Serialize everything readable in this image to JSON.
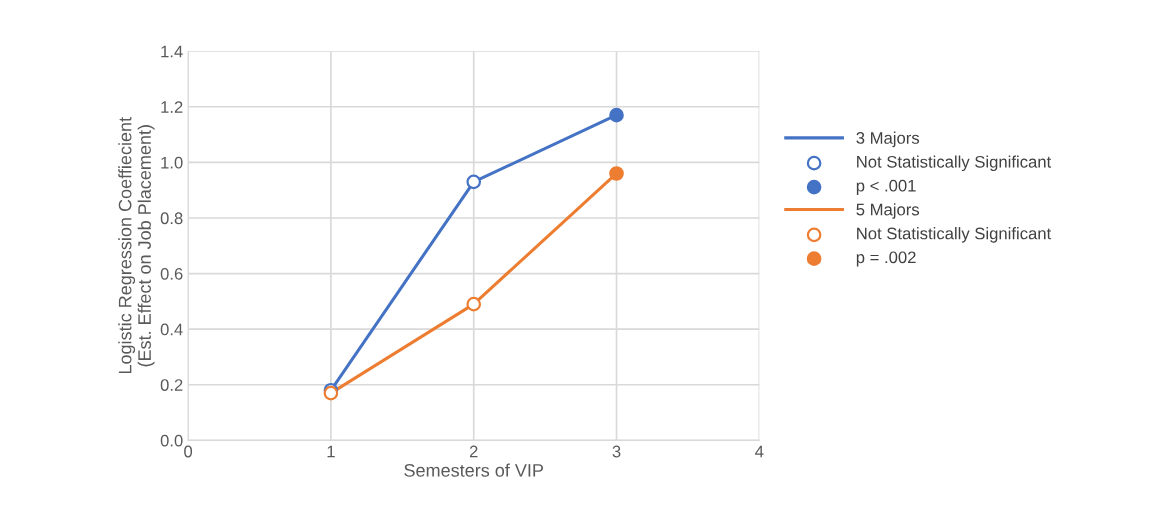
{
  "chart_data": {
    "type": "line",
    "xlabel": "Semesters of VIP",
    "ylabel": "Logistic Regression Coeffiecient\n(Est. Effect on Job Placement)",
    "xlim": [
      0,
      4
    ],
    "xticks": [
      0,
      1,
      2,
      3,
      4
    ],
    "ylim": [
      0,
      1.4
    ],
    "yticks": [
      {
        "value": 0,
        "label": "0.0"
      },
      {
        "value": 0.2,
        "label": "0.2"
      },
      {
        "value": 0.4,
        "label": "0.4"
      },
      {
        "value": 0.6,
        "label": "0.6"
      },
      {
        "value": 0.8,
        "label": "0.8"
      },
      {
        "value": 1.0,
        "label": "1.0"
      },
      {
        "value": 1.2,
        "label": "1.2"
      },
      {
        "value": 1.4,
        "label": "1.4"
      }
    ],
    "grid": true,
    "legend": "right",
    "marker": "none",
    "line_style": "solid",
    "series": [
      {
        "name": "3 Majors",
        "color": "#4472c4",
        "x": [
          1,
          2,
          3
        ],
        "values": [
          0.18,
          0.93,
          1.17
        ]
      },
      {
        "name": "Not Statistically Significant",
        "type": "scatter",
        "marker": "circle",
        "colors": [
          "#ffffff",
          "#ffffff"
        ],
        "color": "#4472c4",
        "x": [
          1,
          2
        ],
        "values": [
          0.18,
          0.93
        ]
      },
      {
        "name": "p < .001",
        "type": "scatter",
        "marker": "circle",
        "color": "#4472c4",
        "x": [
          3
        ],
        "values": [
          1.17
        ]
      },
      {
        "name": "5 Majors",
        "color": "#ed7d31",
        "x": [
          1,
          2,
          3
        ],
        "values": [
          0.17,
          0.49,
          0.96
        ]
      },
      {
        "name": "Not Statistically Significant",
        "type": "scatter",
        "marker": "circle",
        "colors": [
          "#ffffff",
          "#ffffff"
        ],
        "color": "#ed7d31",
        "x": [
          1,
          2
        ],
        "values": [
          0.17,
          0.49
        ]
      },
      {
        "name": "p = .002",
        "type": "scatter",
        "marker": "circle",
        "color": "#ed7d31",
        "x": [
          3
        ],
        "values": [
          0.96
        ]
      }
    ]
  }
}
